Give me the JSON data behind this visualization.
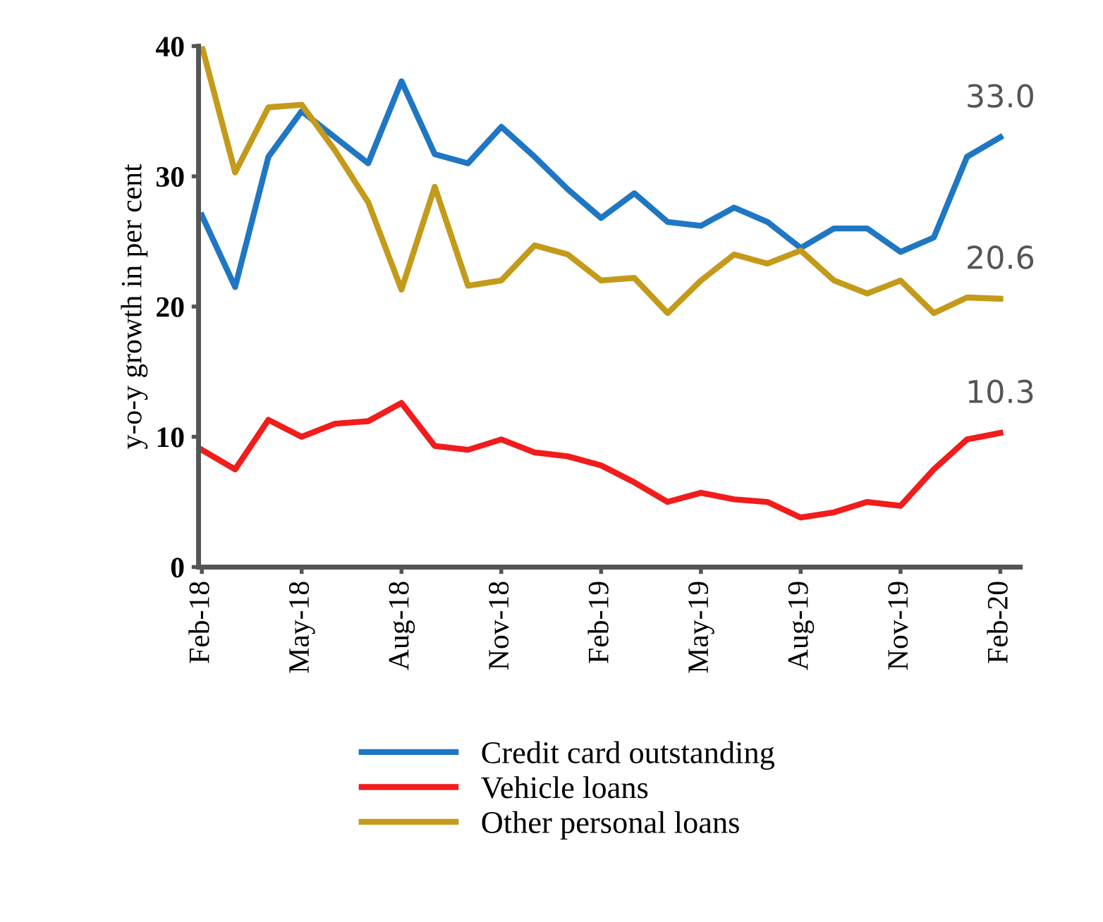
{
  "chart_data": {
    "type": "line",
    "ylabel": "y-o-y growth in per cent",
    "categories": [
      "Feb-18",
      null,
      null,
      "May-18",
      null,
      null,
      "Aug-18",
      null,
      null,
      "Nov-18",
      null,
      null,
      "Feb-19",
      null,
      null,
      "May-19",
      null,
      null,
      "Aug-19",
      null,
      null,
      "Nov-19",
      null,
      null,
      "Feb-20"
    ],
    "series": [
      {
        "name": "Credit card outstanding",
        "color": "#1f77c4",
        "values": [
          27,
          21.5,
          31.5,
          35,
          33,
          31,
          37.3,
          31.7,
          31,
          33.8,
          31.5,
          29,
          26.8,
          28.7,
          26.5,
          26.2,
          27.6,
          26.5,
          24.5,
          26,
          26,
          24.2,
          25.3,
          31.5,
          33.0
        ]
      },
      {
        "name": "Vehicle loans",
        "color": "#f21c1c",
        "values": [
          9,
          7.5,
          11.3,
          10,
          11,
          11.2,
          12.6,
          9.3,
          9,
          9.8,
          8.8,
          8.5,
          7.8,
          6.5,
          5,
          5.7,
          5.2,
          5,
          3.8,
          4.2,
          5,
          4.7,
          7.5,
          9.8,
          10.3
        ]
      },
      {
        "name": "Other personal loans",
        "color": "#c49a1a",
        "values": [
          40,
          30.3,
          35.3,
          35.5,
          32,
          28,
          21.3,
          29.2,
          21.6,
          22,
          24.7,
          24,
          22,
          22.2,
          19.5,
          22,
          24,
          23.3,
          24.3,
          22,
          21,
          22,
          19.5,
          20.7,
          20.6
        ]
      }
    ],
    "annotations": [
      {
        "text": "33.0",
        "x": "Feb-20",
        "y": 33.0
      },
      {
        "text": "20.6",
        "x": "Feb-20",
        "y": 20.6
      },
      {
        "text": "10.3",
        "x": "Feb-20",
        "y": 10.3
      }
    ],
    "ylim": [
      0,
      40
    ],
    "yticks": [
      0,
      10,
      20,
      30,
      40
    ],
    "grid": false,
    "legend": "bottom",
    "marker": "none",
    "line_style": "solid"
  }
}
